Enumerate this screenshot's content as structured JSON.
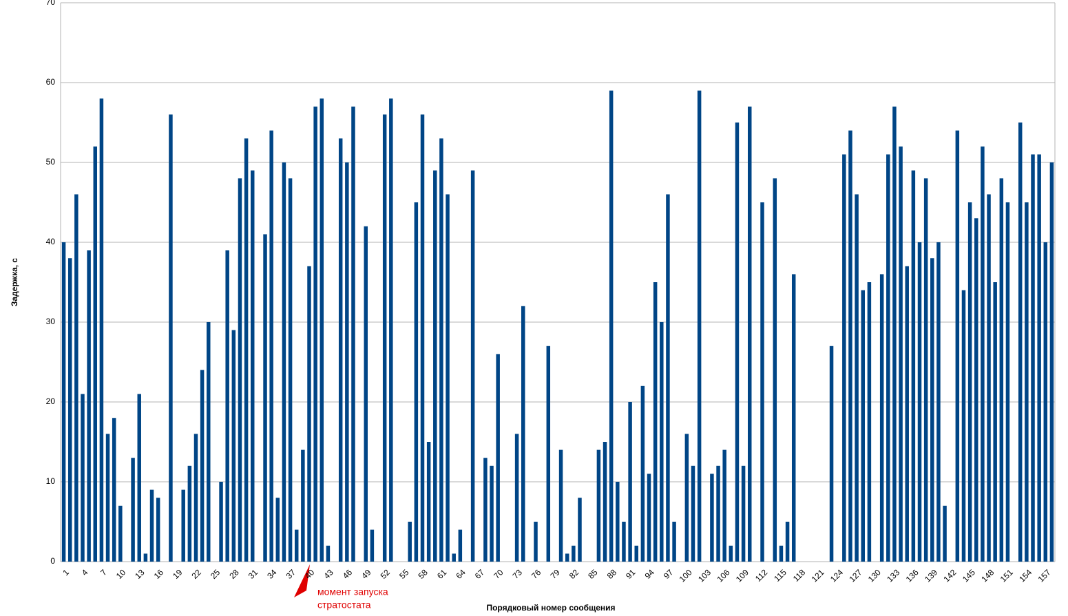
{
  "chart_data": {
    "type": "bar",
    "x_label": "Порядковый номер сообщения",
    "y_label": "Задержка, с",
    "annotation": [
      "момент запуска",
      "стратостата"
    ],
    "categories": [
      "1",
      null,
      null,
      "4",
      null,
      null,
      "7",
      null,
      null,
      "10",
      null,
      null,
      "13",
      null,
      null,
      "16",
      null,
      null,
      "19",
      null,
      null,
      "22",
      null,
      null,
      "25",
      null,
      null,
      "28",
      null,
      null,
      "31",
      null,
      null,
      "34",
      null,
      null,
      "37",
      null,
      null,
      "40",
      null,
      null,
      "43",
      null,
      null,
      "46",
      null,
      null,
      "49",
      null,
      null,
      "52",
      null,
      null,
      "55",
      null,
      null,
      "58",
      null,
      null,
      "61",
      null,
      null,
      "64",
      null,
      null,
      "67",
      null,
      null,
      "70",
      null,
      null,
      "73",
      null,
      null,
      "76",
      null,
      null,
      "79",
      null,
      null,
      "82",
      null,
      null,
      "85",
      null,
      null,
      "88",
      null,
      null,
      "91",
      null,
      null,
      "94",
      null,
      null,
      "97",
      null,
      null,
      "100",
      null,
      null,
      "103",
      null,
      null,
      "106",
      null,
      null,
      "109",
      null,
      null,
      "112",
      null,
      null,
      "115",
      null,
      null,
      "118",
      null,
      null,
      "121",
      null,
      null,
      "124",
      null,
      null,
      "127",
      null,
      null,
      "130",
      null,
      null,
      "133",
      null,
      null,
      "136",
      null,
      null,
      "139",
      null,
      null,
      "142",
      null,
      null,
      "145",
      null,
      null,
      "148",
      null,
      null,
      "151",
      null,
      null,
      "154",
      null,
      null,
      "157",
      null
    ],
    "values": [
      40,
      38,
      46,
      21,
      39,
      52,
      58,
      16,
      18,
      7,
      0,
      13,
      21,
      1,
      9,
      8,
      0,
      56,
      0,
      9,
      12,
      16,
      24,
      30,
      0,
      10,
      39,
      29,
      48,
      53,
      49,
      0,
      41,
      54,
      8,
      50,
      48,
      4,
      14,
      37,
      57,
      58,
      2,
      0,
      53,
      50,
      57,
      0,
      42,
      4,
      0,
      56,
      58,
      0,
      0,
      5,
      45,
      56,
      15,
      49,
      53,
      46,
      1,
      4,
      0,
      49,
      0,
      13,
      12,
      26,
      0,
      0,
      16,
      32,
      0,
      5,
      0,
      27,
      0,
      14,
      1,
      2,
      8,
      0,
      0,
      14,
      15,
      59,
      10,
      5,
      20,
      2,
      22,
      11,
      35,
      30,
      46,
      5,
      0,
      16,
      12,
      59,
      0,
      11,
      12,
      14,
      2,
      55,
      12,
      57,
      0,
      45,
      0,
      48,
      2,
      5,
      36,
      0,
      0,
      0,
      0,
      0,
      27,
      0,
      51,
      54,
      46,
      34,
      35,
      0,
      36,
      51,
      57,
      52,
      37,
      49,
      40,
      48,
      38,
      40,
      7,
      0,
      54,
      34,
      45,
      43,
      52,
      46,
      35,
      48,
      45,
      0,
      55,
      45,
      51,
      51,
      40,
      50
    ],
    "color": "#004586",
    "ylim": [
      0,
      70
    ],
    "yticks": [
      0,
      10,
      20,
      30,
      40,
      50,
      60,
      70
    ],
    "grid": true
  }
}
